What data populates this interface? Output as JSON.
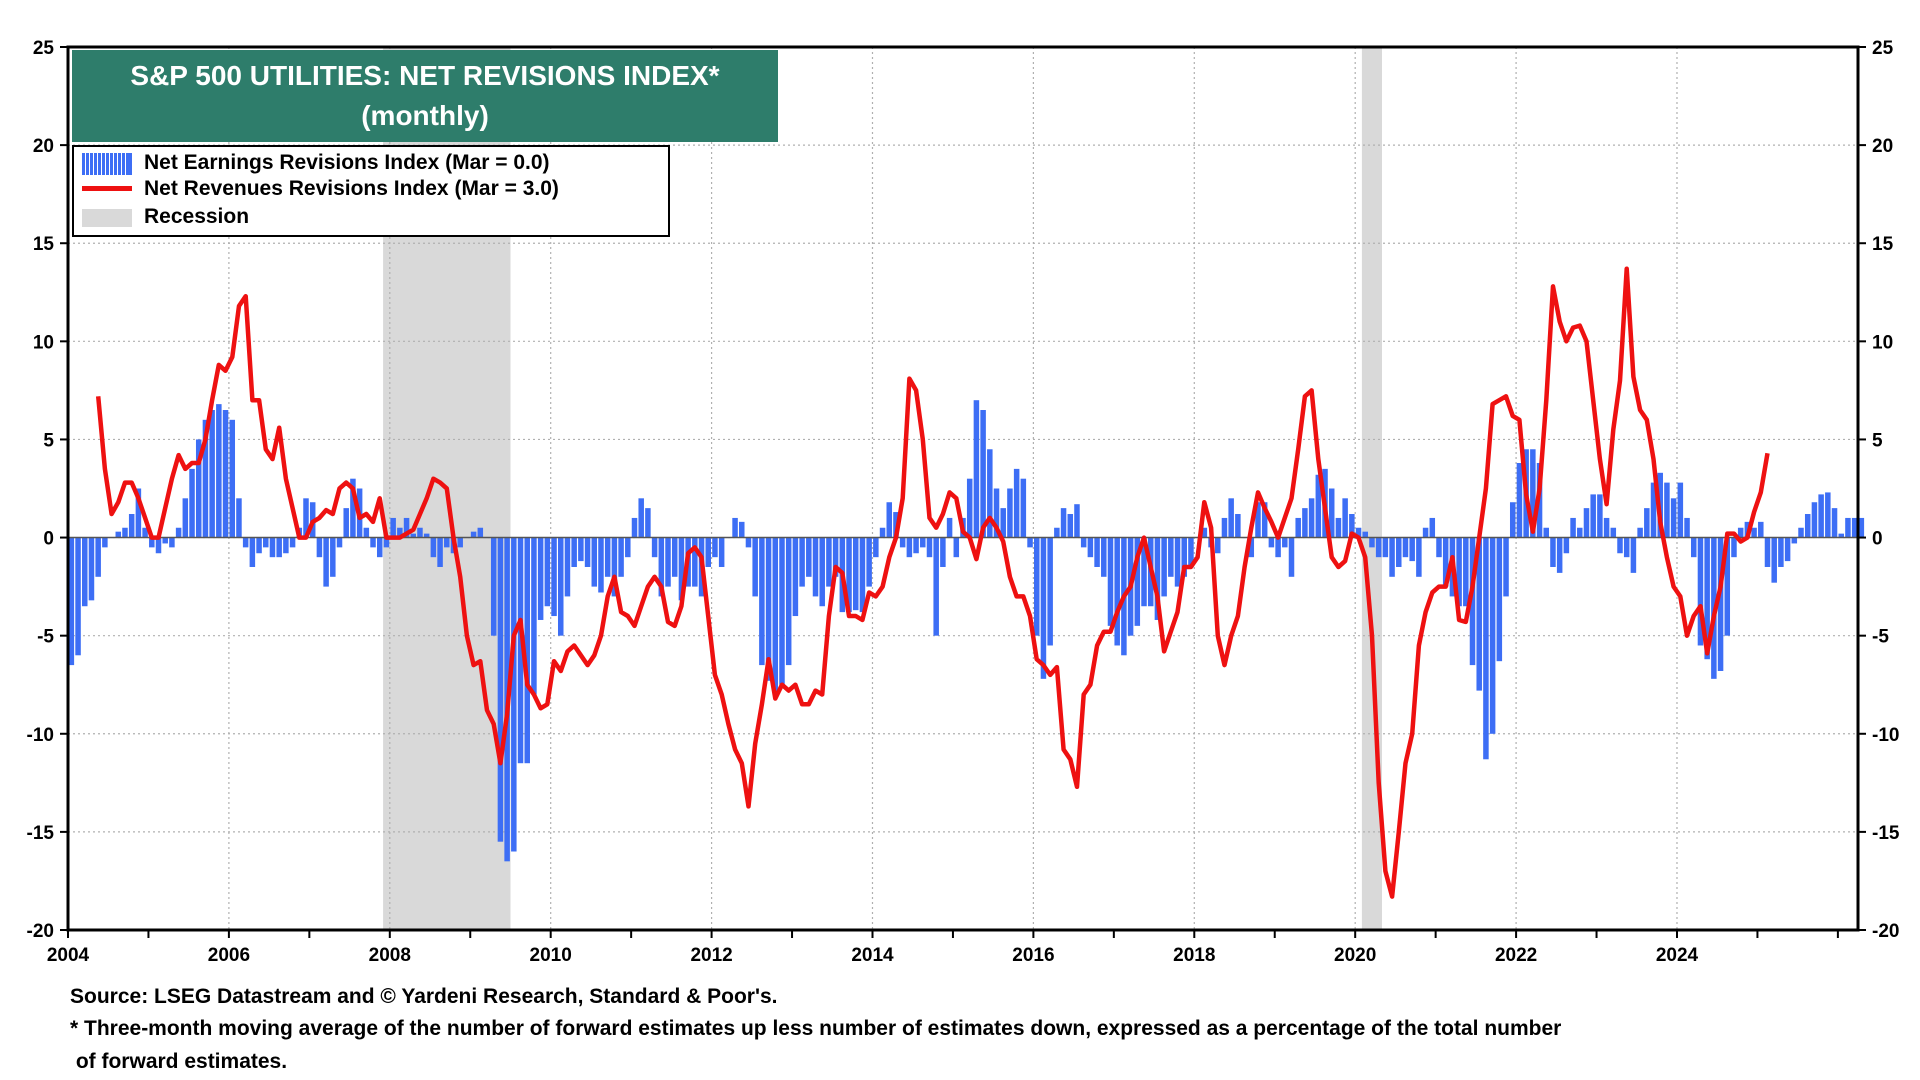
{
  "chart_data": {
    "type": "bar+line",
    "title": "S&P 500 UTILITIES: NET REVISIONS INDEX*",
    "subtitle": "(monthly)",
    "ylim": [
      -20,
      25
    ],
    "yticks": [
      25,
      20,
      15,
      10,
      5,
      0,
      -5,
      -10,
      -15,
      -20
    ],
    "xlim": [
      "2004-01",
      "2026-04"
    ],
    "xticks": [
      "2004",
      "2006",
      "2008",
      "2010",
      "2012",
      "2014",
      "2016",
      "2018",
      "2020",
      "2022",
      "2024"
    ],
    "grid": true,
    "legend_position": "top-left",
    "colors": {
      "earnings": "#3d6ef5",
      "revenues": "#ee1111",
      "recession": "#d9d9d9",
      "title_bg": "#2e7d6b"
    },
    "legend": [
      "Net Earnings Revisions Index (Mar  = 0.0)",
      "Net Revenues Revisions Index (Mar  = 3.0)",
      "Recession"
    ],
    "recessions": [
      {
        "start": "2007-12",
        "end": "2009-06"
      },
      {
        "start": "2020-02",
        "end": "2020-04"
      }
    ],
    "earnings_series": {
      "name": "Net Earnings Revisions Index",
      "start": "2004-01",
      "values": [
        -6.5,
        -6,
        -3.5,
        -3.2,
        -2,
        -0.5,
        0,
        0.3,
        0.5,
        1.2,
        2.5,
        0.5,
        -0.5,
        -0.8,
        -0.3,
        -0.5,
        0.5,
        2,
        3.5,
        5,
        6,
        6.5,
        6.8,
        6.5,
        6,
        2,
        -0.5,
        -1.5,
        -0.8,
        -0.5,
        -1,
        -1,
        -0.8,
        -0.5,
        0.5,
        2,
        1.8,
        -1,
        -2.5,
        -2,
        -0.5,
        1.5,
        3,
        2.5,
        0.5,
        -0.5,
        -1,
        -0.5,
        1,
        0.5,
        1,
        0.2,
        0.5,
        0.2,
        -1,
        -1.5,
        -0.5,
        -0.8,
        -0.5,
        0,
        0.3,
        0.5,
        0,
        -5,
        -15.5,
        -16.5,
        -16,
        -11.5,
        -11.5,
        -8,
        -4.2,
        -3.5,
        -4,
        -5,
        -3,
        -1.5,
        -1.2,
        -1.5,
        -2.5,
        -2.8,
        -2,
        -3,
        -2,
        -1,
        1,
        2,
        1.5,
        -1,
        -3,
        -2.5,
        -2,
        -3.2,
        -2.5,
        -2.5,
        -3,
        -1.5,
        -1,
        -1.5,
        0,
        1,
        0.8,
        -0.5,
        -3,
        -6.5,
        -7.3,
        -8,
        -7.5,
        -6.5,
        -4,
        -2.5,
        -2,
        -3,
        -3.5,
        -2.5,
        -2,
        -3.8,
        -3.8,
        -3.7,
        -3.8,
        -2.5,
        -1,
        0.5,
        1.8,
        1.3,
        -0.5,
        -1,
        -0.8,
        -0.5,
        -1,
        -5,
        -1.5,
        1,
        -1,
        1,
        3,
        7,
        6.5,
        4.5,
        2.5,
        1.5,
        2.5,
        3.5,
        3,
        -0.5,
        -5,
        -7.2,
        -5.5,
        0.5,
        1.5,
        1.2,
        1.7,
        -0.5,
        -1,
        -1.5,
        -2,
        -4.5,
        -5.5,
        -6,
        -5,
        -4.5,
        -3.5,
        -3.5,
        -4.2,
        -3,
        -2,
        -2.5,
        -2,
        -1.5,
        0,
        0.5,
        -0.5,
        -0.8,
        1,
        2,
        1.2,
        0,
        -1,
        1.8,
        1.8,
        -0.5,
        -1,
        -0.5,
        -2,
        1,
        1.5,
        2,
        3.2,
        3.5,
        2.5,
        1,
        2,
        1.2,
        0.5,
        0.3,
        -0.5,
        -1,
        -1,
        -2,
        -1.5,
        -1,
        -1.2,
        -2,
        0.5,
        1,
        -1,
        -2.5,
        -3,
        -3.5,
        -3.5,
        -6.5,
        -7.8,
        -11.3,
        -10,
        -6.3,
        -3,
        1.8,
        3.8,
        4.5,
        4.5,
        3.8,
        0.5,
        -1.5,
        -1.8,
        -0.8,
        1,
        0.5,
        1.5,
        2.2,
        2.2,
        1,
        0.5,
        -0.8,
        -1,
        -1.8,
        0.5,
        1.5,
        2.8,
        3.3,
        2.8,
        2,
        2.8,
        1,
        -1,
        -5.5,
        -6.2,
        -7.2,
        -6.8,
        -5,
        -1,
        0.5,
        0.8,
        0.5,
        0.8,
        -1.5,
        -2.3,
        -1.5,
        -1.2,
        -0.3,
        0.5,
        1.2,
        1.8,
        2.2,
        2.3,
        1.5,
        0.2,
        1,
        1,
        1
      ]
    },
    "revenues_series": {
      "name": "Net Revenues Revisions Index",
      "points": [
        [
          "2004-05",
          7.2
        ],
        [
          "2004-06",
          3.5
        ],
        [
          "2004-07",
          1.2
        ],
        [
          "2004-08",
          1.8
        ],
        [
          "2004-09",
          2.8
        ],
        [
          "2004-10",
          2.8
        ],
        [
          "2004-11",
          2
        ],
        [
          "2004-12",
          1
        ],
        [
          "2005-01",
          0
        ],
        [
          "2005-02",
          0
        ],
        [
          "2005-03",
          1.5
        ],
        [
          "2005-04",
          3
        ],
        [
          "2005-05",
          4.2
        ],
        [
          "2005-06",
          3.5
        ],
        [
          "2005-07",
          3.8
        ],
        [
          "2005-08",
          3.8
        ],
        [
          "2005-09",
          5
        ],
        [
          "2005-10",
          7
        ],
        [
          "2005-11",
          8.8
        ],
        [
          "2005-12",
          8.5
        ],
        [
          "2006-01",
          9.2
        ],
        [
          "2006-02",
          11.8
        ],
        [
          "2006-03",
          12.3
        ],
        [
          "2006-04",
          7
        ],
        [
          "2006-05",
          7
        ],
        [
          "2006-06",
          4.5
        ],
        [
          "2006-07",
          4
        ],
        [
          "2006-08",
          5.6
        ],
        [
          "2006-09",
          3
        ],
        [
          "2006-10",
          1.5
        ],
        [
          "2006-11",
          0
        ],
        [
          "2006-12",
          0
        ],
        [
          "2007-01",
          0.8
        ],
        [
          "2007-02",
          1
        ],
        [
          "2007-03",
          1.4
        ],
        [
          "2007-04",
          1.2
        ],
        [
          "2007-05",
          2.5
        ],
        [
          "2007-06",
          2.8
        ],
        [
          "2007-07",
          2.5
        ],
        [
          "2007-08",
          1
        ],
        [
          "2007-09",
          1.2
        ],
        [
          "2007-10",
          0.8
        ],
        [
          "2007-11",
          2
        ],
        [
          "2007-12",
          0
        ],
        [
          "2008-01",
          0
        ],
        [
          "2008-02",
          0
        ],
        [
          "2008-03",
          0.2
        ],
        [
          "2008-04",
          0.4
        ],
        [
          "2008-05",
          1.2
        ],
        [
          "2008-06",
          2
        ],
        [
          "2008-07",
          3
        ],
        [
          "2008-08",
          2.8
        ],
        [
          "2008-09",
          2.5
        ],
        [
          "2008-10",
          0
        ],
        [
          "2008-11",
          -2
        ],
        [
          "2008-12",
          -5
        ],
        [
          "2009-01",
          -6.5
        ],
        [
          "2009-02",
          -6.3
        ],
        [
          "2009-03",
          -8.8
        ],
        [
          "2009-04",
          -9.5
        ],
        [
          "2009-05",
          -11.5
        ],
        [
          "2009-06",
          -9
        ],
        [
          "2009-07",
          -5
        ],
        [
          "2009-08",
          -4.2
        ],
        [
          "2009-09",
          -7.5
        ],
        [
          "2009-10",
          -8
        ],
        [
          "2009-11",
          -8.7
        ],
        [
          "2009-12",
          -8.5
        ],
        [
          "2010-01",
          -6.3
        ],
        [
          "2010-02",
          -6.8
        ],
        [
          "2010-03",
          -5.8
        ],
        [
          "2010-04",
          -5.5
        ],
        [
          "2010-05",
          -6
        ],
        [
          "2010-06",
          -6.5
        ],
        [
          "2010-07",
          -6
        ],
        [
          "2010-08",
          -5
        ],
        [
          "2010-09",
          -3
        ],
        [
          "2010-10",
          -2
        ],
        [
          "2010-11",
          -3.8
        ],
        [
          "2010-12",
          -4
        ],
        [
          "2011-01",
          -4.5
        ],
        [
          "2011-02",
          -3.5
        ],
        [
          "2011-03",
          -2.5
        ],
        [
          "2011-04",
          -2
        ],
        [
          "2011-05",
          -2.5
        ],
        [
          "2011-06",
          -4.3
        ],
        [
          "2011-07",
          -4.5
        ],
        [
          "2011-08",
          -3.5
        ],
        [
          "2011-09",
          -0.8
        ],
        [
          "2011-10",
          -0.5
        ],
        [
          "2011-11",
          -1
        ],
        [
          "2011-12",
          -4
        ],
        [
          "2012-01",
          -7
        ],
        [
          "2012-02",
          -8
        ],
        [
          "2012-03",
          -9.5
        ],
        [
          "2012-04",
          -10.8
        ],
        [
          "2012-05",
          -11.5
        ],
        [
          "2012-06",
          -13.7
        ],
        [
          "2012-07",
          -10.5
        ],
        [
          "2012-08",
          -8.5
        ],
        [
          "2012-09",
          -6.2
        ],
        [
          "2012-10",
          -8.2
        ],
        [
          "2012-11",
          -7.5
        ],
        [
          "2012-12",
          -7.8
        ],
        [
          "2013-01",
          -7.5
        ],
        [
          "2013-02",
          -8.5
        ],
        [
          "2013-03",
          -8.5
        ],
        [
          "2013-04",
          -7.8
        ],
        [
          "2013-05",
          -8
        ],
        [
          "2013-06",
          -4
        ],
        [
          "2013-07",
          -1.5
        ],
        [
          "2013-08",
          -1.8
        ],
        [
          "2013-09",
          -4
        ],
        [
          "2013-10",
          -4
        ],
        [
          "2013-11",
          -4.2
        ],
        [
          "2013-12",
          -2.8
        ],
        [
          "2014-01",
          -3
        ],
        [
          "2014-02",
          -2.5
        ],
        [
          "2014-03",
          -1
        ],
        [
          "2014-04",
          0
        ],
        [
          "2014-05",
          2
        ],
        [
          "2014-06",
          8.1
        ],
        [
          "2014-07",
          7.5
        ],
        [
          "2014-08",
          5
        ],
        [
          "2014-09",
          1
        ],
        [
          "2014-10",
          0.5
        ],
        [
          "2014-11",
          1.2
        ],
        [
          "2014-12",
          2.3
        ],
        [
          "2015-01",
          2
        ],
        [
          "2015-02",
          0.3
        ],
        [
          "2015-03",
          0
        ],
        [
          "2015-04",
          -1.1
        ],
        [
          "2015-05",
          0.5
        ],
        [
          "2015-06",
          1
        ],
        [
          "2015-07",
          0.5
        ],
        [
          "2015-08",
          -0.2
        ],
        [
          "2015-09",
          -2
        ],
        [
          "2015-10",
          -3
        ],
        [
          "2015-11",
          -3
        ],
        [
          "2015-12",
          -4
        ],
        [
          "2016-01",
          -6.2
        ],
        [
          "2016-02",
          -6.5
        ],
        [
          "2016-03",
          -7
        ],
        [
          "2016-04",
          -6.6
        ],
        [
          "2016-05",
          -10.8
        ],
        [
          "2016-06",
          -11.3
        ],
        [
          "2016-07",
          -12.7
        ],
        [
          "2016-08",
          -8
        ],
        [
          "2016-09",
          -7.5
        ],
        [
          "2016-10",
          -5.5
        ],
        [
          "2016-11",
          -4.8
        ],
        [
          "2016-12",
          -4.8
        ],
        [
          "2017-01",
          -3.8
        ],
        [
          "2017-02",
          -3
        ],
        [
          "2017-03",
          -2.5
        ],
        [
          "2017-04",
          -1
        ],
        [
          "2017-05",
          0
        ],
        [
          "2017-06",
          -1.5
        ],
        [
          "2017-07",
          -3
        ],
        [
          "2017-08",
          -5.8
        ],
        [
          "2017-09",
          -4.8
        ],
        [
          "2017-10",
          -3.8
        ],
        [
          "2017-11",
          -1.5
        ],
        [
          "2017-12",
          -1.5
        ],
        [
          "2018-01",
          -1
        ],
        [
          "2018-02",
          1.8
        ],
        [
          "2018-03",
          0.5
        ],
        [
          "2018-04",
          -5
        ],
        [
          "2018-05",
          -6.5
        ],
        [
          "2018-06",
          -5
        ],
        [
          "2018-07",
          -4
        ],
        [
          "2018-08",
          -1.5
        ],
        [
          "2018-09",
          0.5
        ],
        [
          "2018-10",
          2.3
        ],
        [
          "2018-11",
          1.5
        ],
        [
          "2018-12",
          0.8
        ],
        [
          "2019-01",
          0
        ],
        [
          "2019-02",
          1
        ],
        [
          "2019-03",
          2
        ],
        [
          "2019-04",
          4.5
        ],
        [
          "2019-05",
          7.2
        ],
        [
          "2019-06",
          7.5
        ],
        [
          "2019-07",
          4
        ],
        [
          "2019-08",
          1.5
        ],
        [
          "2019-09",
          -1
        ],
        [
          "2019-10",
          -1.5
        ],
        [
          "2019-11",
          -1.2
        ],
        [
          "2019-12",
          0.2
        ],
        [
          "2020-01",
          0
        ],
        [
          "2020-02",
          -1
        ],
        [
          "2020-03",
          -5
        ],
        [
          "2020-04",
          -12.5
        ],
        [
          "2020-05",
          -17
        ],
        [
          "2020-06",
          -18.3
        ],
        [
          "2020-07",
          -15
        ],
        [
          "2020-08",
          -11.5
        ],
        [
          "2020-09",
          -10
        ],
        [
          "2020-10",
          -5.5
        ],
        [
          "2020-11",
          -3.8
        ],
        [
          "2020-12",
          -2.8
        ],
        [
          "2021-01",
          -2.5
        ],
        [
          "2021-02",
          -2.5
        ],
        [
          "2021-03",
          -1
        ],
        [
          "2021-04",
          -4.2
        ],
        [
          "2021-05",
          -4.3
        ],
        [
          "2021-06",
          -2.5
        ],
        [
          "2021-07",
          0
        ],
        [
          "2021-08",
          2.5
        ],
        [
          "2021-09",
          6.8
        ],
        [
          "2021-10",
          7
        ],
        [
          "2021-11",
          7.2
        ],
        [
          "2021-12",
          6.2
        ],
        [
          "2022-01",
          6
        ],
        [
          "2022-02",
          2.2
        ],
        [
          "2022-03",
          0.3
        ],
        [
          "2022-04",
          2.5
        ],
        [
          "2022-05",
          7
        ],
        [
          "2022-06",
          12.8
        ],
        [
          "2022-07",
          11
        ],
        [
          "2022-08",
          10
        ],
        [
          "2022-09",
          10.7
        ],
        [
          "2022-10",
          10.8
        ],
        [
          "2022-11",
          10
        ],
        [
          "2022-12",
          7
        ],
        [
          "2023-01",
          4
        ],
        [
          "2023-02",
          1.7
        ],
        [
          "2023-03",
          5.5
        ],
        [
          "2023-04",
          8
        ],
        [
          "2023-05",
          13.7
        ],
        [
          "2023-06",
          8.2
        ],
        [
          "2023-07",
          6.5
        ],
        [
          "2023-08",
          6
        ],
        [
          "2023-09",
          4
        ],
        [
          "2023-10",
          0.8
        ],
        [
          "2023-11",
          -1
        ],
        [
          "2023-12",
          -2.5
        ],
        [
          "2024-01",
          -3
        ],
        [
          "2024-02",
          -5
        ],
        [
          "2024-03",
          -4
        ],
        [
          "2024-04",
          -3.5
        ],
        [
          "2024-05",
          -5.9
        ],
        [
          "2024-06",
          -4
        ],
        [
          "2024-07",
          -2.5
        ],
        [
          "2024-08",
          0.2
        ],
        [
          "2024-09",
          0.2
        ],
        [
          "2024-10",
          -0.2
        ],
        [
          "2024-11",
          0
        ],
        [
          "2024-12",
          1.3
        ],
        [
          "2025-01",
          2.3
        ],
        [
          "2025-02",
          4.3
        ]
      ]
    },
    "source_lines": [
      "Source: LSEG Datastream and © Yardeni Research, Standard & Poor's.",
      "* Three-month moving average of the number of forward estimates up less number of estimates down, expressed as a percentage of the total number",
      " of forward estimates."
    ]
  }
}
